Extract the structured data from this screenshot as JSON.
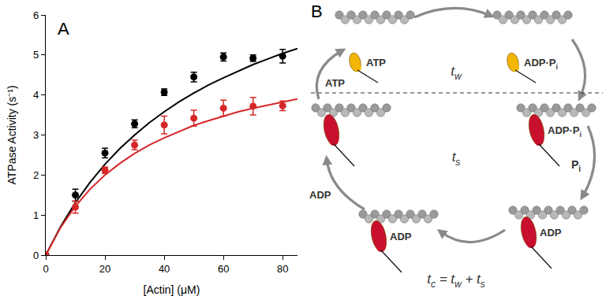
{
  "chart_data": {
    "type": "scatter",
    "x_label": "[Actin] (μM)",
    "y_label": "ATPase Activity (s⁻¹)",
    "xlim": [
      0,
      85
    ],
    "xticks": [
      0,
      20,
      40,
      60,
      80
    ],
    "ylim": [
      0,
      6
    ],
    "yticks": [
      0,
      1,
      2,
      3,
      4,
      5,
      6
    ],
    "grid": false,
    "annotations": [
      {
        "text": "A"
      }
    ],
    "series": [
      {
        "color": "#000000",
        "type": "scatter",
        "marker": "circle",
        "x": [
          0,
          10,
          20,
          30,
          40,
          50,
          60,
          70,
          80
        ],
        "values": [
          0,
          1.5,
          2.55,
          3.28,
          4.07,
          4.45,
          4.95,
          4.92,
          4.97
        ],
        "errors": [
          0,
          0.15,
          0.12,
          0.1,
          0.08,
          0.12,
          0.1,
          0.08,
          0.17
        ]
      },
      {
        "color": "#000000",
        "type": "line",
        "line_style": "solid",
        "x": [
          0,
          5,
          10,
          15,
          20,
          25,
          30,
          35,
          40,
          45,
          50,
          55,
          60,
          65,
          70,
          75,
          80,
          85
        ],
        "values": [
          0,
          0.71,
          1.31,
          1.82,
          2.27,
          2.66,
          3.0,
          3.31,
          3.58,
          3.83,
          4.05,
          4.25,
          4.43,
          4.6,
          4.76,
          4.9,
          5.04,
          5.16
        ]
      },
      {
        "color": "#d62728",
        "type": "scatter",
        "marker": "circle",
        "x": [
          0,
          10,
          20,
          30,
          40,
          50,
          60,
          70,
          80
        ],
        "values": [
          0,
          1.2,
          2.12,
          2.75,
          3.25,
          3.42,
          3.67,
          3.72,
          3.73
        ],
        "errors": [
          0,
          0.15,
          0.08,
          0.12,
          0.22,
          0.2,
          0.2,
          0.22,
          0.12
        ]
      },
      {
        "color": "#d62728",
        "type": "line",
        "line_style": "solid",
        "x": [
          0,
          5,
          10,
          15,
          20,
          25,
          30,
          35,
          40,
          45,
          50,
          55,
          60,
          65,
          70,
          75,
          80,
          85
        ],
        "values": [
          0,
          0.69,
          1.22,
          1.65,
          2.0,
          2.29,
          2.54,
          2.75,
          2.93,
          3.09,
          3.24,
          3.36,
          3.47,
          3.58,
          3.67,
          3.75,
          3.83,
          3.9
        ]
      }
    ]
  },
  "diagram": {
    "label": "B",
    "states": [
      {
        "bound": false,
        "nucleotide": [
          [
            "ATP"
          ]
        ]
      },
      {
        "bound": false,
        "nucleotide": [
          [
            "ADP·P",
            "i"
          ]
        ]
      },
      {
        "bound": true,
        "nucleotide": [
          [
            "ADP·P",
            "i"
          ]
        ]
      },
      {
        "bound": true,
        "nucleotide": [
          [
            "ADP"
          ]
        ]
      },
      {
        "bound": true,
        "nucleotide": [
          [
            "ADP"
          ]
        ]
      },
      {
        "bound": true
      }
    ],
    "transitions": [
      {
        "label": [
          [
            "P",
            "i"
          ]
        ]
      },
      {
        "label": [
          [
            "ADP"
          ]
        ]
      },
      {
        "label": [
          [
            "ATP"
          ]
        ]
      }
    ],
    "phases": [
      {
        "label": [
          [
            "t",
            "w"
          ]
        ]
      },
      {
        "label": [
          [
            "t",
            "s"
          ]
        ]
      }
    ],
    "cycle": [
      [
        "t",
        "c"
      ],
      [
        " = t",
        "w"
      ],
      [
        " + t",
        "s"
      ]
    ]
  }
}
